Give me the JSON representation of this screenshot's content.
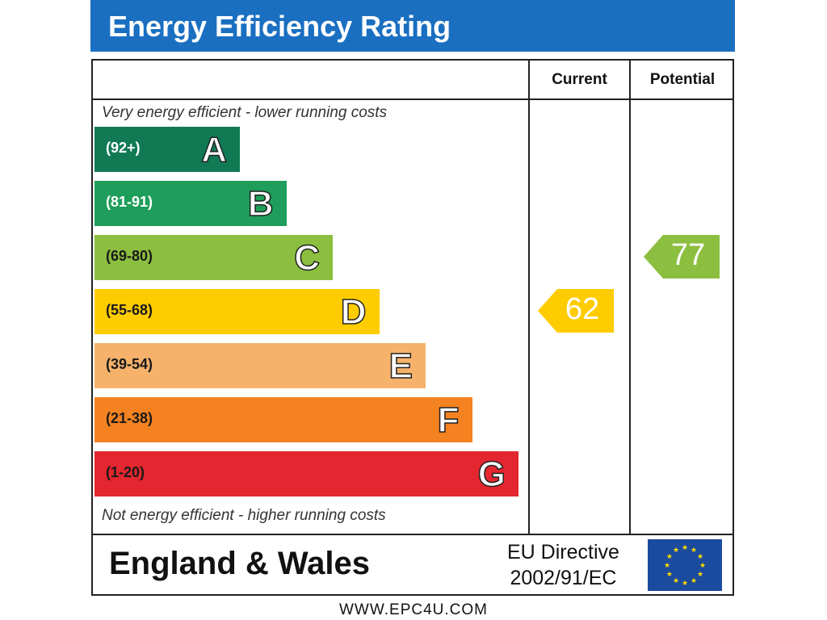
{
  "title": "Energy Efficiency Rating",
  "columns": {
    "current": "Current",
    "potential": "Potential"
  },
  "captions": {
    "top": "Very energy efficient - lower running costs",
    "bottom": "Not energy efficient - higher running costs"
  },
  "region": "England & Wales",
  "directive": {
    "line1": "EU Directive",
    "line2": "2002/91/EC"
  },
  "footer": "WWW.EPC4U.COM",
  "chart_data": {
    "type": "bar",
    "title": "Energy Efficiency Rating",
    "categories": [
      "A",
      "B",
      "C",
      "D",
      "E",
      "F",
      "G"
    ],
    "bands": [
      {
        "letter": "A",
        "range": "(92+)",
        "color": "#117a55",
        "text_color": "#ffffff",
        "min": 92,
        "max": 100
      },
      {
        "letter": "B",
        "range": "(81-91)",
        "color": "#1e9e5a",
        "text_color": "#ffffff",
        "min": 81,
        "max": 91
      },
      {
        "letter": "C",
        "range": "(69-80)",
        "color": "#8cbf3f",
        "text_color": "#1a1a1a",
        "min": 69,
        "max": 80
      },
      {
        "letter": "D",
        "range": "(55-68)",
        "color": "#ffcc00",
        "text_color": "#1a1a1a",
        "min": 55,
        "max": 68
      },
      {
        "letter": "E",
        "range": "(39-54)",
        "color": "#f6b26b",
        "text_color": "#1a1a1a",
        "min": 39,
        "max": 54
      },
      {
        "letter": "F",
        "range": "(21-38)",
        "color": "#f58220",
        "text_color": "#1a1a1a",
        "min": 21,
        "max": 38
      },
      {
        "letter": "G",
        "range": "(1-20)",
        "color": "#e3262f",
        "text_color": "#1a1a1a",
        "min": 1,
        "max": 20
      }
    ],
    "series": [
      {
        "name": "Current",
        "value": 62,
        "band": "D",
        "color": "#ffcc00"
      },
      {
        "name": "Potential",
        "value": 77,
        "band": "C",
        "color": "#8cbf3f"
      }
    ],
    "xlabel": "",
    "ylabel": ""
  }
}
